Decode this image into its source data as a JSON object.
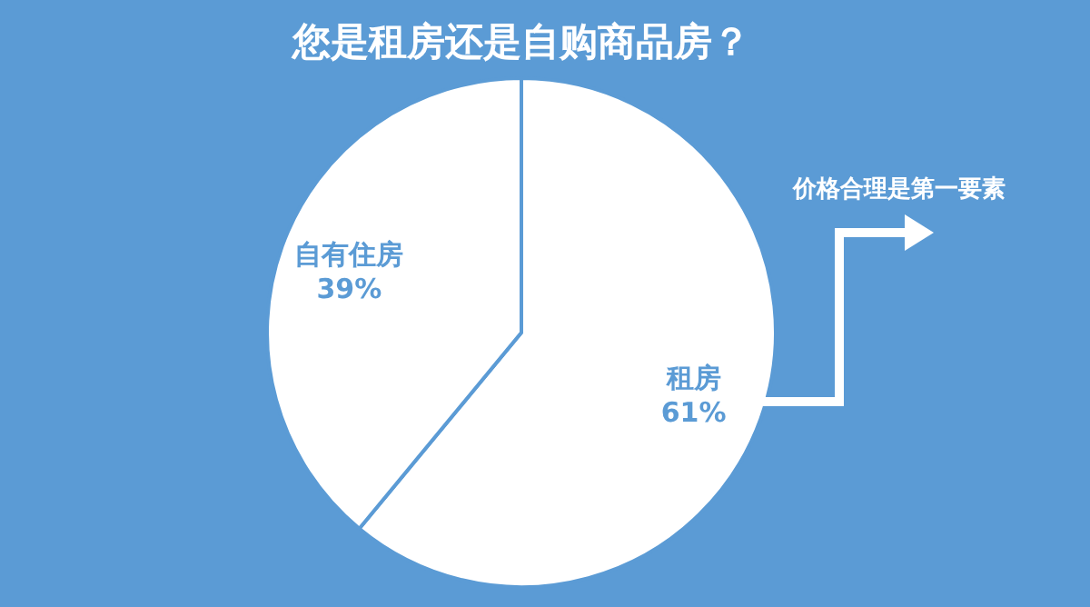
{
  "chart_data": {
    "type": "pie",
    "title": "您是租房还是自购商品房？",
    "categories": [
      "租房",
      "自有住房"
    ],
    "values": [
      61,
      39
    ],
    "colors": [
      "#ffffff",
      "#ffffff"
    ],
    "value_labels": [
      "61%",
      "39%"
    ],
    "annotations": [
      "价格合理是第一要素"
    ]
  }
}
